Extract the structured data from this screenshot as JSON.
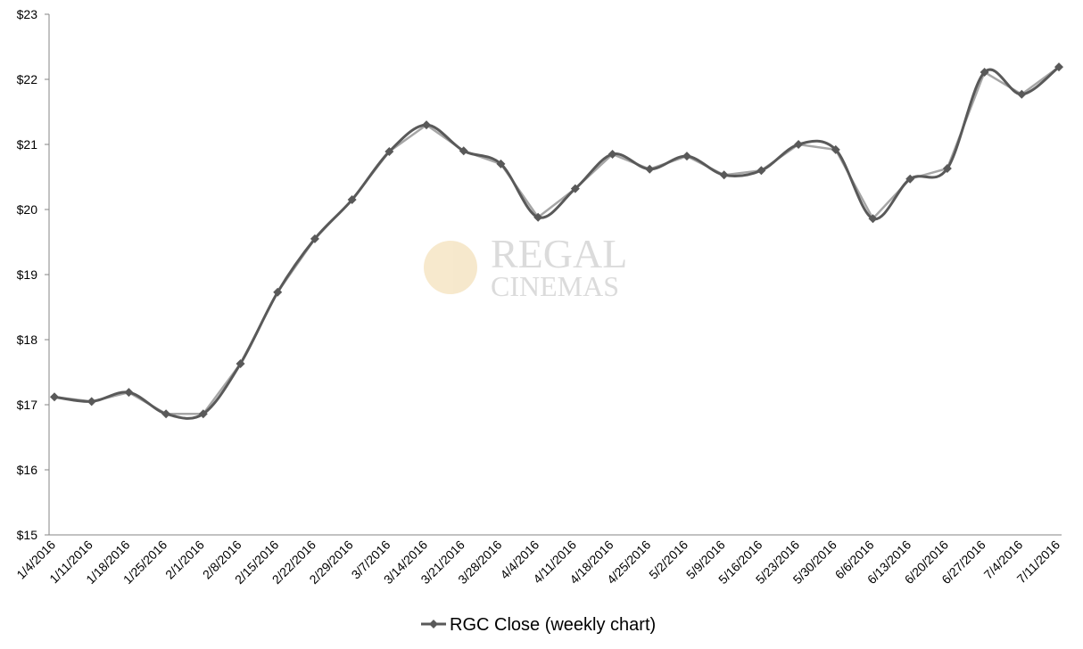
{
  "chart_data": {
    "type": "line",
    "watermark": [
      "REGAL",
      "CINEMAS"
    ],
    "categories": [
      "1/4/2016",
      "1/11/2016",
      "1/18/2016",
      "1/25/2016",
      "2/1/2016",
      "2/8/2016",
      "2/15/2016",
      "2/22/2016",
      "2/29/2016",
      "3/7/2016",
      "3/14/2016",
      "3/21/2016",
      "3/28/2016",
      "4/4/2016",
      "4/11/2016",
      "4/18/2016",
      "4/25/2016",
      "5/2/2016",
      "5/9/2016",
      "5/16/2016",
      "5/23/2016",
      "5/30/2016",
      "6/6/2016",
      "6/13/2016",
      "6/20/2016",
      "6/27/2016",
      "7/4/2016",
      "7/11/2016"
    ],
    "series": [
      {
        "name": "RGC Close (weekly chart)",
        "color": "#595959",
        "values": [
          17.12,
          17.05,
          17.19,
          16.86,
          16.86,
          17.63,
          18.73,
          19.55,
          20.15,
          20.89,
          21.3,
          20.9,
          20.7,
          19.88,
          20.32,
          20.85,
          20.62,
          20.82,
          20.53,
          20.6,
          21.0,
          20.92,
          19.86,
          20.47,
          20.63,
          22.11,
          21.77,
          22.19
        ]
      }
    ],
    "trend_color": "#a6a6a6",
    "ylim": [
      15,
      23
    ],
    "yticks": [
      {
        "value": 15,
        "label": "$15"
      },
      {
        "value": 16,
        "label": "$16"
      },
      {
        "value": 17,
        "label": "$17"
      },
      {
        "value": 18,
        "label": "$18"
      },
      {
        "value": 19,
        "label": "$19"
      },
      {
        "value": 20,
        "label": "$20"
      },
      {
        "value": 21,
        "label": "$21"
      },
      {
        "value": 22,
        "label": "$22"
      },
      {
        "value": 23,
        "label": "$23"
      }
    ],
    "grid": false,
    "legend": "bottom"
  }
}
